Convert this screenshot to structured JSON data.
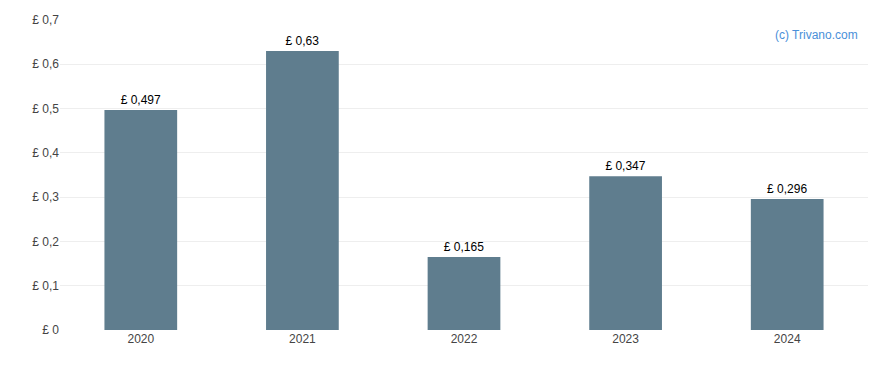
{
  "chart_data": {
    "type": "bar",
    "categories": [
      "2020",
      "2021",
      "2022",
      "2023",
      "2024"
    ],
    "values": [
      0.497,
      0.63,
      0.165,
      0.347,
      0.296
    ],
    "value_labels": [
      "£ 0,497",
      "£ 0,63",
      "£ 0,165",
      "£ 0,347",
      "£ 0,296"
    ],
    "data_labels": true,
    "color": "#5f7d8e",
    "ylim": [
      0,
      0.7
    ],
    "yticks": [
      {
        "value": 0.0,
        "label": "£ 0"
      },
      {
        "value": 0.1,
        "label": "£ 0,1"
      },
      {
        "value": 0.2,
        "label": "£ 0,2"
      },
      {
        "value": 0.3,
        "label": "£ 0,3"
      },
      {
        "value": 0.4,
        "label": "£ 0,4"
      },
      {
        "value": 0.5,
        "label": "£ 0,5"
      },
      {
        "value": 0.6,
        "label": "£ 0,6"
      },
      {
        "value": 0.7,
        "label": "£ 0,7"
      }
    ],
    "grid": true,
    "annotations": [
      {
        "text": "(c) Trivano.com",
        "color": "#4a90d9"
      }
    ]
  }
}
